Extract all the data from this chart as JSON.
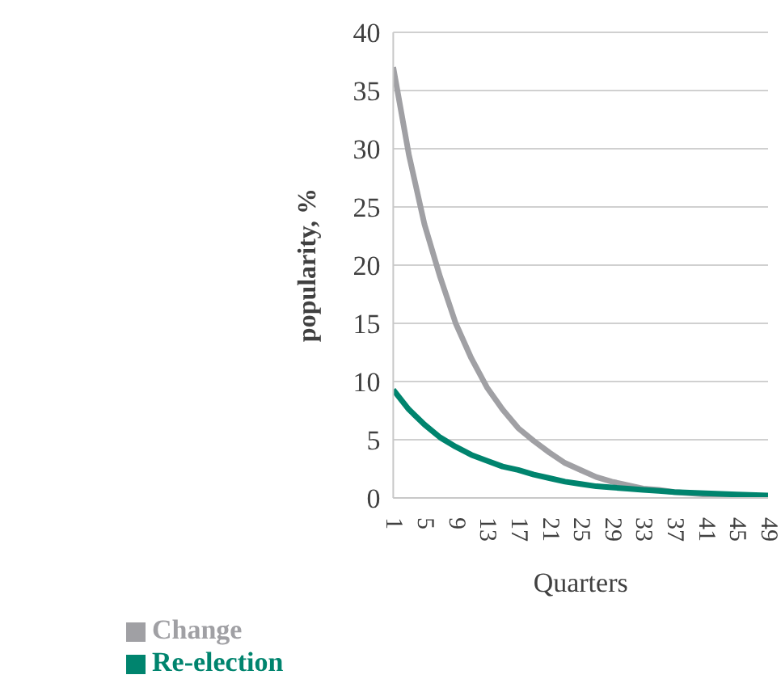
{
  "chart_data": {
    "type": "line",
    "xlabel": "Quarters",
    "ylabel": "popularity, %",
    "xlim": [
      1,
      49
    ],
    "xticks": [
      1,
      5,
      9,
      13,
      17,
      21,
      25,
      29,
      33,
      37,
      41,
      45,
      49
    ],
    "ylim": [
      0,
      40
    ],
    "yticks": [
      0,
      5,
      10,
      15,
      20,
      25,
      30,
      35,
      40
    ],
    "grid": "y",
    "legend": "bottom left",
    "marker": "none",
    "line_style": "solid",
    "series": [
      {
        "name": "Change",
        "color": "#a0a0a4",
        "x": [
          1,
          3,
          5,
          7,
          9,
          11,
          13,
          15,
          17,
          19,
          21,
          23,
          25,
          27,
          29,
          31,
          33,
          35,
          37,
          41,
          45,
          49
        ],
        "values": [
          37,
          29.5,
          23.5,
          19,
          15,
          12,
          9.5,
          7.6,
          6,
          4.9,
          3.9,
          3,
          2.4,
          1.8,
          1.4,
          1.1,
          0.8,
          0.7,
          0.5,
          0.3,
          0.2,
          0.1
        ]
      },
      {
        "name": "Re-election",
        "color": "#00846e",
        "x": [
          1,
          3,
          5,
          7,
          9,
          11,
          13,
          15,
          17,
          19,
          21,
          23,
          25,
          27,
          29,
          31,
          33,
          35,
          37,
          41,
          45,
          49
        ],
        "values": [
          9.3,
          7.6,
          6.3,
          5.2,
          4.4,
          3.7,
          3.2,
          2.7,
          2.4,
          2.0,
          1.7,
          1.4,
          1.2,
          1.0,
          0.9,
          0.8,
          0.7,
          0.6,
          0.5,
          0.4,
          0.3,
          0.2
        ]
      }
    ]
  }
}
